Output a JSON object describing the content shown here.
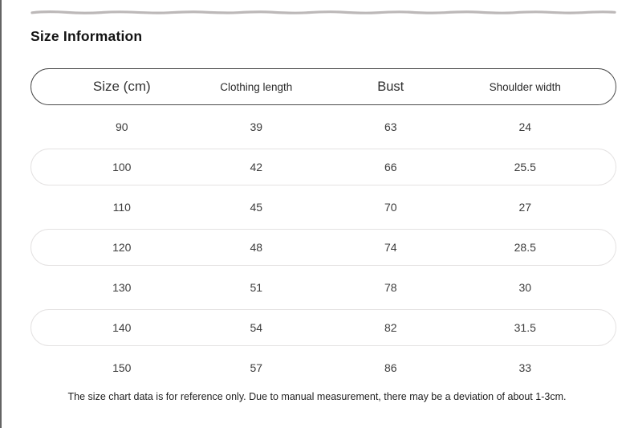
{
  "page": {
    "title": "Size Information",
    "footnote": "The size chart data is for reference only. Due to manual measurement, there may be a deviation of about 1-3cm."
  },
  "decor": {
    "wave_color": "#bcb8b8",
    "header_border_color": "#4b4b4b",
    "pill_border_color": "#e4e2e2",
    "left_edge_color": "#646464"
  },
  "table": {
    "columns": [
      "Size (cm)",
      "Clothing length",
      "Bust",
      "Shoulder width"
    ],
    "rows": [
      [
        "90",
        "39",
        "63",
        "24"
      ],
      [
        "100",
        "42",
        "66",
        "25.5"
      ],
      [
        "110",
        "45",
        "70",
        "27"
      ],
      [
        "120",
        "48",
        "74",
        "28.5"
      ],
      [
        "130",
        "51",
        "78",
        "30"
      ],
      [
        "140",
        "54",
        "82",
        "31.5"
      ],
      [
        "150",
        "57",
        "86",
        "33"
      ]
    ]
  }
}
